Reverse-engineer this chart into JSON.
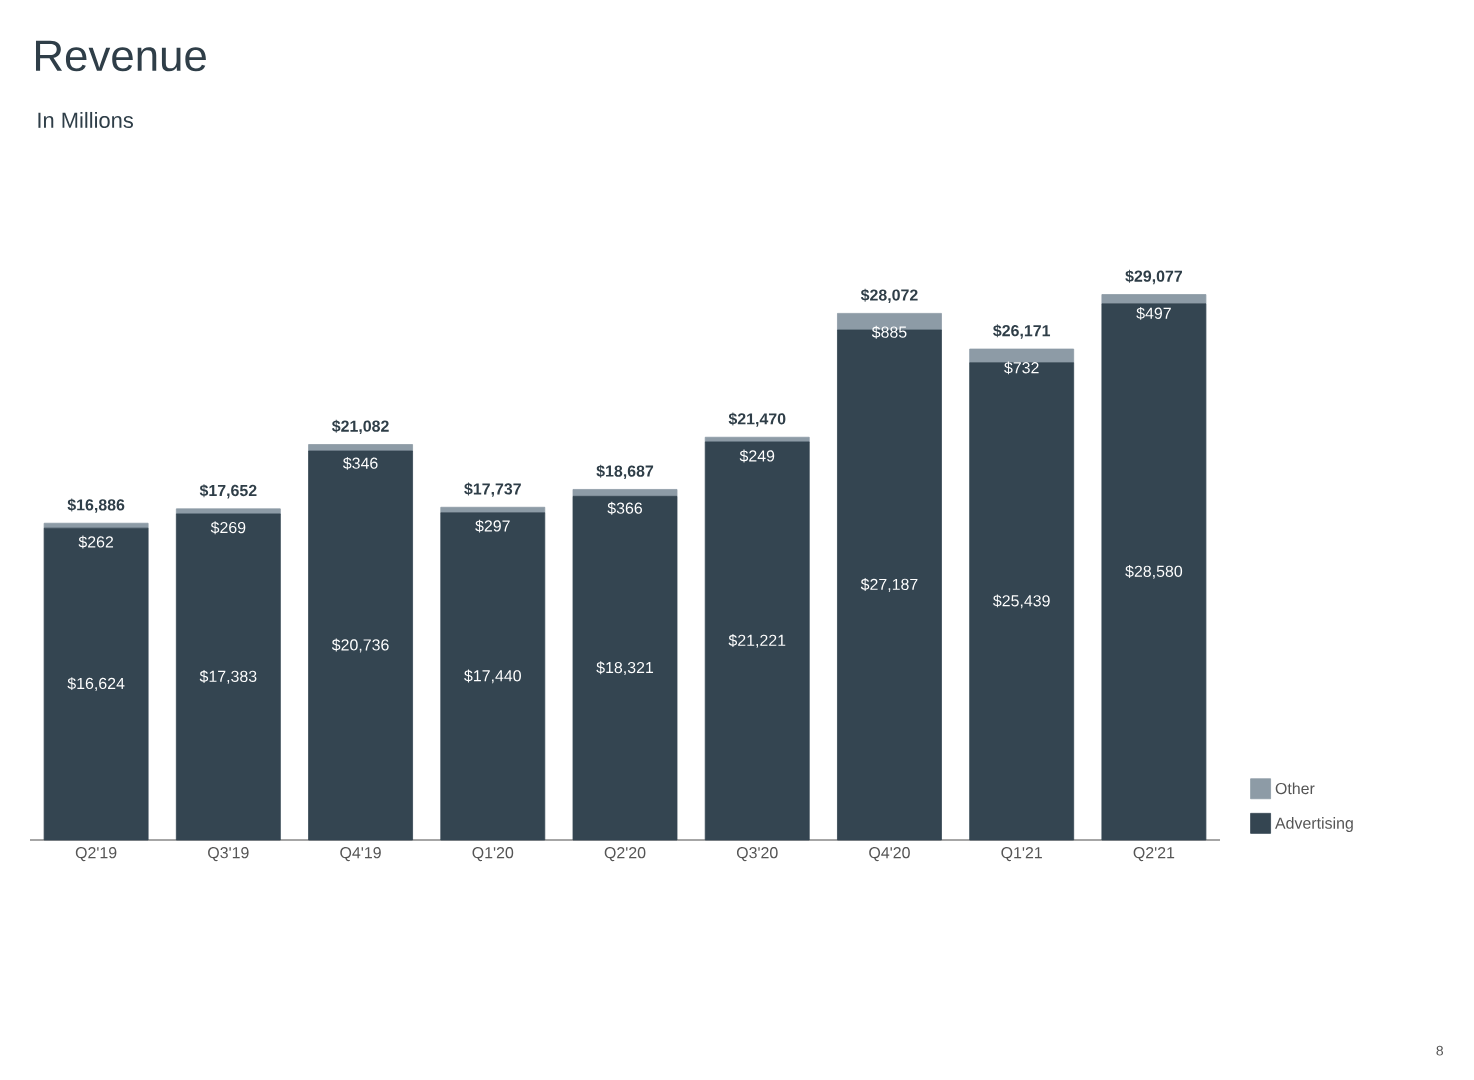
{
  "chart_data": {
    "type": "bar",
    "title": "Revenue",
    "subtitle": "In Millions",
    "stacked": true,
    "legend": "right",
    "categories": [
      "Q2'19",
      "Q3'19",
      "Q4'19",
      "Q1'20",
      "Q2'20",
      "Q3'20",
      "Q4'20",
      "Q1'21",
      "Q2'21"
    ],
    "series": [
      {
        "name": "Advertising",
        "color": "#344551",
        "values": [
          16624,
          17383,
          20736,
          17440,
          18321,
          21221,
          27187,
          25439,
          28580
        ],
        "value_labels": [
          "$16,624",
          "$17,383",
          "$20,736",
          "$17,440",
          "$18,321",
          "$21,221",
          "$27,187",
          "$25,439",
          "$28,580"
        ]
      },
      {
        "name": "Other",
        "color": "#8d9ba6",
        "values": [
          262,
          269,
          346,
          297,
          366,
          249,
          885,
          732,
          497
        ],
        "value_labels": [
          "$262",
          "$269",
          "$346",
          "$297",
          "$366",
          "$249",
          "$885",
          "$732",
          "$497"
        ]
      }
    ],
    "totals": [
      "$16,886",
      "$17,652",
      "$21,082",
      "$17,737",
      "$18,687",
      "$21,470",
      "$28,072",
      "$26,171",
      "$29,077"
    ],
    "annotations": [
      "8"
    ]
  }
}
